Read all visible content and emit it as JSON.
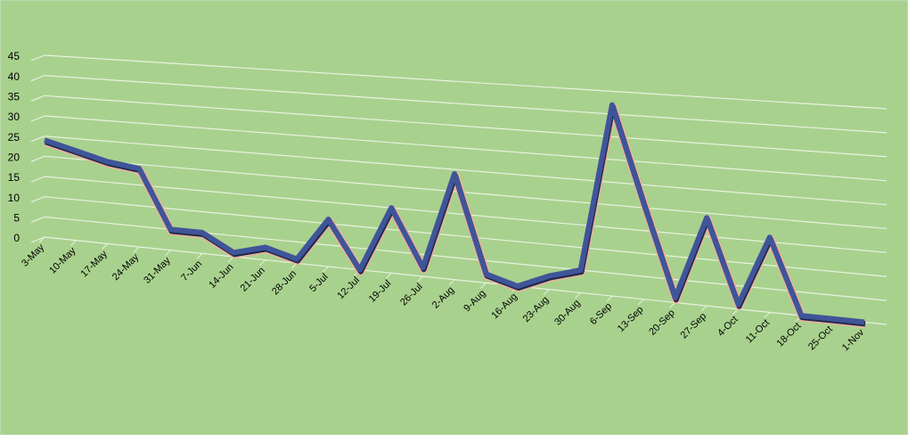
{
  "chart_data": {
    "type": "line",
    "categories": [
      "3-May",
      "10-May",
      "17-May",
      "24-May",
      "31-May",
      "7-Jun",
      "14-Jun",
      "21-Jun",
      "28-Jun",
      "5-Jul",
      "12-Jul",
      "19-Jul",
      "26-Jul",
      "2-Aug",
      "9-Aug",
      "16-Aug",
      "23-Aug",
      "30-Aug",
      "6-Sep",
      "13-Sep",
      "20-Sep",
      "27-Sep",
      "4-Oct",
      "11-Oct",
      "18-Oct",
      "25-Oct",
      "1-Nov"
    ],
    "series": [
      {
        "color": "#3f5599",
        "values": [
          24,
          22,
          20,
          19,
          5,
          5,
          1,
          3,
          1,
          11,
          0,
          15,
          2,
          24,
          2,
          0,
          3,
          5,
          42,
          21,
          1,
          19,
          1,
          16,
          0,
          0,
          0
        ]
      }
    ],
    "ylim": [
      0,
      45
    ],
    "yticks": [
      0,
      5,
      10,
      15,
      20,
      25,
      30,
      35,
      40,
      45
    ],
    "grid": true
  }
}
